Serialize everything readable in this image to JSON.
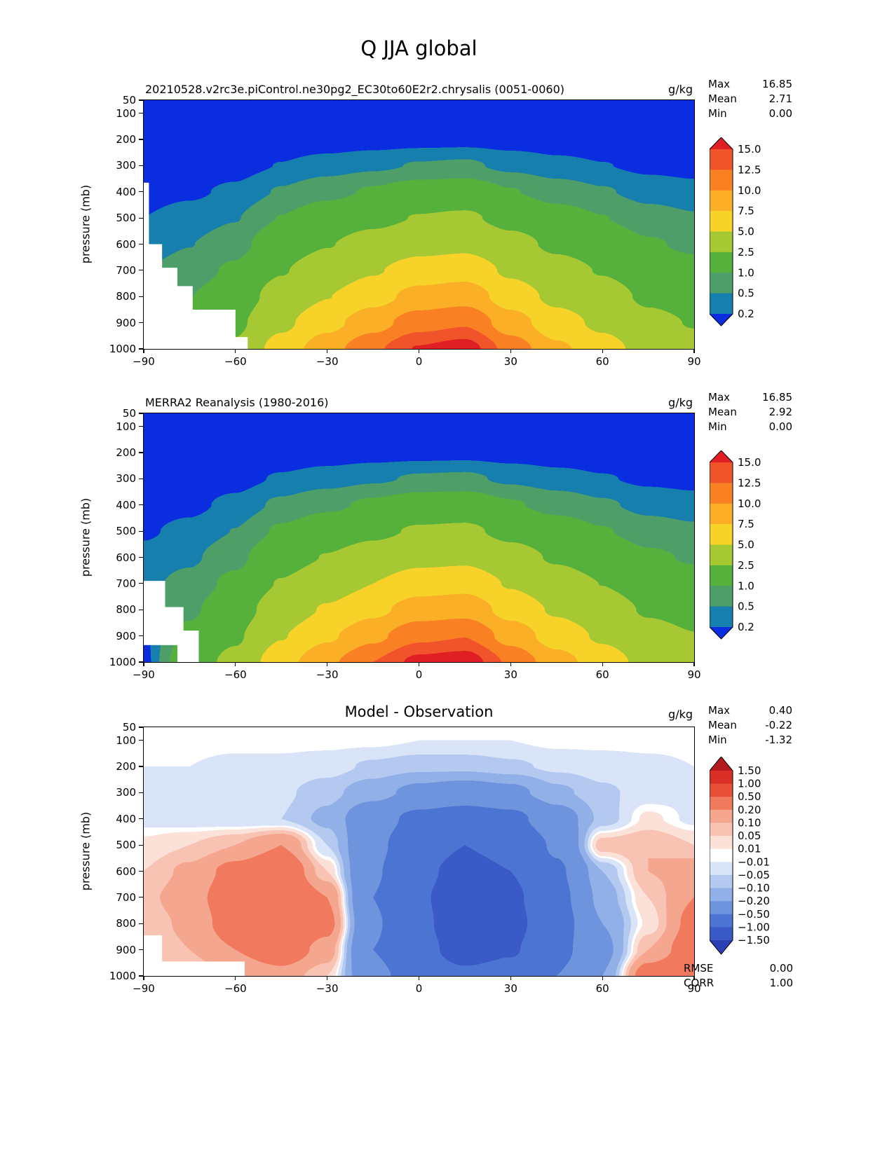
{
  "title": "Q JJA global",
  "labels": {
    "max": "Max",
    "mean": "Mean",
    "min": "Min"
  },
  "chart_data": [
    {
      "type": "heatmap",
      "subtitle": "20210528.v2rc3e.piControl.ne30pg2_EC30to60E2r2.chrysalis (0051-0060)",
      "units": "g/kg",
      "stats": {
        "max": "16.85",
        "mean": "2.71",
        "min": "0.00"
      },
      "ylabel": "pressure (mb)",
      "x_ticks": [
        "−90",
        "−60",
        "−30",
        "0",
        "30",
        "60",
        "90"
      ],
      "y_ticks": [
        "50",
        "100",
        "200",
        "300",
        "400",
        "500",
        "600",
        "700",
        "800",
        "900",
        "1000"
      ],
      "lat": [
        -90,
        -75,
        -60,
        -45,
        -30,
        -15,
        0,
        15,
        30,
        45,
        60,
        75,
        90
      ],
      "pressure": [
        50,
        100,
        200,
        300,
        400,
        500,
        600,
        700,
        800,
        900,
        1000
      ],
      "levels": [
        0.2,
        0.5,
        1.0,
        2.5,
        5.0,
        7.5,
        10.0,
        12.5,
        15.0
      ],
      "level_labels": [
        "15.0",
        "12.5",
        "10.0",
        "7.5",
        "5.0",
        "2.5",
        "1.0",
        "0.5",
        "0.2"
      ],
      "colors": [
        "#0a2de0",
        "#177fad",
        "#4d9e68",
        "#55b13b",
        "#a6c832",
        "#f7d32a",
        "#fbaf27",
        "#f98124",
        "#f1532b",
        "#e01f25"
      ],
      "values": [
        [
          0,
          0,
          0,
          0,
          0,
          0,
          0,
          0,
          0,
          0,
          0,
          0,
          0
        ],
        [
          0,
          0,
          0,
          0,
          0,
          0.01,
          0.01,
          0.01,
          0.01,
          0,
          0,
          0,
          0
        ],
        [
          0.01,
          0.01,
          0.02,
          0.04,
          0.05,
          0.07,
          0.09,
          0.1,
          0.07,
          0.05,
          0.04,
          0.02,
          0.02
        ],
        [
          0.04,
          0.06,
          0.1,
          0.21,
          0.32,
          0.42,
          0.53,
          0.57,
          0.4,
          0.28,
          0.21,
          0.14,
          0.11
        ],
        [
          0.11,
          0.16,
          0.25,
          0.54,
          0.81,
          1.08,
          1.37,
          1.47,
          1.04,
          0.72,
          0.54,
          0.36,
          0.29
        ],
        [
          0.2,
          0.31,
          0.48,
          1.02,
          1.53,
          2.04,
          2.58,
          2.77,
          1.96,
          1.36,
          1.02,
          0.68,
          0.54
        ],
        [
          0.32,
          0.49,
          0.76,
          1.62,
          2.43,
          3.24,
          4.1,
          4.4,
          3.11,
          2.16,
          1.62,
          1.08,
          0.86
        ],
        [
          0.48,
          0.72,
          1.12,
          2.4,
          3.6,
          4.8,
          6.08,
          6.52,
          4.6,
          3.2,
          2.4,
          1.6,
          1.28
        ],
        [
          0.66,
          0.99,
          1.54,
          3.3,
          4.95,
          6.6,
          8.36,
          8.97,
          6.33,
          4.4,
          3.3,
          2.2,
          1.76
        ],
        [
          0.9,
          1.35,
          2.1,
          4.5,
          6.75,
          9.0,
          11.4,
          12.23,
          8.63,
          6.0,
          4.5,
          3.0,
          2.4
        ],
        [
          1.2,
          1.8,
          2.8,
          6.0,
          9.0,
          12.0,
          15.2,
          16.3,
          11.5,
          8.0,
          6.0,
          4.0,
          3.2
        ]
      ],
      "mask": [
        [
          [
            -90,
            365
          ],
          [
            -88.3,
            365
          ],
          [
            -88.3,
            600
          ],
          [
            -90,
            600
          ]
        ],
        [
          [
            -90,
            600
          ],
          [
            -84,
            600
          ],
          [
            -84,
            690
          ],
          [
            -79,
            690
          ],
          [
            -79,
            760
          ],
          [
            -74,
            760
          ],
          [
            -74,
            850
          ],
          [
            -60,
            850
          ],
          [
            -60,
            955
          ],
          [
            -56,
            955
          ],
          [
            -56,
            1000
          ],
          [
            -90,
            1000
          ]
        ]
      ]
    },
    {
      "type": "heatmap",
      "subtitle": "MERRA2 Reanalysis (1980-2016)",
      "units": "g/kg",
      "stats": {
        "max": "16.85",
        "mean": "2.92",
        "min": "0.00"
      },
      "ylabel": "pressure (mb)",
      "x_ticks": [
        "−90",
        "−60",
        "−30",
        "0",
        "30",
        "60",
        "90"
      ],
      "y_ticks": [
        "50",
        "100",
        "200",
        "300",
        "400",
        "500",
        "600",
        "700",
        "800",
        "900",
        "1000"
      ],
      "lat": [
        -90,
        -75,
        -60,
        -45,
        -30,
        -15,
        0,
        15,
        30,
        45,
        60,
        75,
        90
      ],
      "pressure": [
        50,
        100,
        200,
        300,
        400,
        500,
        600,
        700,
        800,
        900,
        1000
      ],
      "levels": [
        0.2,
        0.5,
        1.0,
        2.5,
        5.0,
        7.5,
        10.0,
        12.5,
        15.0
      ],
      "level_labels": [
        "15.0",
        "12.5",
        "10.0",
        "7.5",
        "5.0",
        "2.5",
        "1.0",
        "0.5",
        "0.2"
      ],
      "colors": [
        "#0a2de0",
        "#177fad",
        "#4d9e68",
        "#55b13b",
        "#a6c832",
        "#f7d32a",
        "#fbaf27",
        "#f98124",
        "#f1532b",
        "#e01f25"
      ],
      "values": [
        [
          0,
          0,
          0,
          0,
          0,
          0,
          0,
          0,
          0,
          0,
          0,
          0,
          0
        ],
        [
          0,
          0,
          0,
          0,
          0,
          0.01,
          0.01,
          0.01,
          0.01,
          0,
          0,
          0,
          0
        ],
        [
          0.01,
          0.01,
          0.02,
          0.04,
          0.06,
          0.08,
          0.09,
          0.1,
          0.07,
          0.05,
          0.04,
          0.03,
          0.02
        ],
        [
          0.04,
          0.06,
          0.11,
          0.23,
          0.33,
          0.44,
          0.55,
          0.58,
          0.42,
          0.3,
          0.22,
          0.15,
          0.12
        ],
        [
          0.09,
          0.14,
          0.27,
          0.59,
          0.86,
          1.13,
          1.42,
          1.49,
          1.08,
          0.77,
          0.56,
          0.38,
          0.31
        ],
        [
          0.17,
          0.27,
          0.51,
          1.11,
          1.62,
          2.13,
          2.69,
          2.82,
          2.04,
          1.45,
          1.05,
          0.71,
          0.58
        ],
        [
          0.27,
          0.43,
          0.81,
          1.76,
          2.57,
          3.38,
          4.27,
          4.48,
          3.24,
          2.3,
          1.67,
          1.13,
          0.92
        ],
        [
          0.4,
          0.64,
          1.2,
          2.6,
          3.8,
          5.0,
          6.32,
          6.64,
          4.8,
          3.4,
          2.48,
          1.68,
          1.36
        ],
        [
          0.55,
          0.88,
          1.65,
          3.58,
          5.23,
          6.88,
          8.69,
          9.13,
          6.6,
          4.68,
          3.41,
          2.31,
          1.87
        ],
        [
          0.15,
          1.2,
          2.25,
          4.88,
          7.13,
          9.38,
          11.85,
          12.45,
          9.0,
          6.38,
          4.65,
          3.15,
          2.55
        ],
        [
          0.1,
          1.6,
          3.0,
          6.5,
          9.5,
          12.5,
          15.8,
          16.6,
          12.0,
          8.5,
          6.2,
          4.2,
          3.4
        ]
      ],
      "mask": [
        [
          [
            -90,
            690
          ],
          [
            -83,
            690
          ],
          [
            -83,
            790
          ],
          [
            -77,
            790
          ],
          [
            -77,
            880
          ],
          [
            -72,
            880
          ],
          [
            -72,
            1000
          ],
          [
            -79,
            1000
          ],
          [
            -79,
            935
          ],
          [
            -90,
            935
          ]
        ]
      ]
    },
    {
      "type": "heatmap",
      "subtitle": "Model - Observation",
      "units": "g/kg",
      "stats": {
        "max": "0.40",
        "mean": "-0.22",
        "min": "-1.32"
      },
      "metrics": {
        "rmse_label": "RMSE",
        "rmse": "0.00",
        "corr_label": "CORR",
        "corr": "1.00"
      },
      "ylabel": "pressure (mb)",
      "x_ticks": [
        "−90",
        "−60",
        "−30",
        "0",
        "30",
        "60",
        "90"
      ],
      "y_ticks": [
        "50",
        "100",
        "200",
        "300",
        "400",
        "500",
        "600",
        "700",
        "800",
        "900",
        "1000"
      ],
      "lat": [
        -90,
        -75,
        -60,
        -45,
        -30,
        -15,
        0,
        15,
        30,
        45,
        60,
        75,
        90
      ],
      "pressure": [
        50,
        100,
        200,
        300,
        400,
        500,
        600,
        700,
        800,
        900,
        1000
      ],
      "levels": [
        -1.5,
        -1.0,
        -0.5,
        -0.2,
        -0.1,
        -0.05,
        -0.01,
        0.01,
        0.05,
        0.1,
        0.2,
        0.5,
        1.0,
        1.5
      ],
      "level_labels": [
        "1.50",
        "1.00",
        "0.50",
        "0.20",
        "0.10",
        "0.05",
        "0.01",
        "−0.01",
        "−0.05",
        "−0.10",
        "−0.20",
        "−0.50",
        "−1.00",
        "−1.50"
      ],
      "colors": [
        "#2b3fb4",
        "#3a5ac7",
        "#4c74d3",
        "#6f94de",
        "#92b0e8",
        "#b4c9f0",
        "#d9e4f8",
        "#ffffff",
        "#fbe1d8",
        "#f8c3b3",
        "#f5a68f",
        "#f1795e",
        "#e84f37",
        "#d92f26",
        "#b5191e"
      ],
      "values": [
        [
          0,
          0,
          0,
          0,
          0,
          0,
          0,
          0,
          0,
          0,
          0,
          0,
          0
        ],
        [
          0,
          0,
          0,
          0,
          0,
          0,
          -0.01,
          -0.01,
          -0.01,
          0,
          0,
          0,
          0
        ],
        [
          -0.01,
          -0.01,
          -0.02,
          -0.02,
          -0.03,
          -0.06,
          -0.08,
          -0.08,
          -0.06,
          -0.04,
          -0.03,
          -0.02,
          -0.01
        ],
        [
          -0.02,
          -0.02,
          -0.03,
          -0.04,
          -0.08,
          -0.15,
          -0.25,
          -0.3,
          -0.25,
          -0.12,
          -0.06,
          -0.03,
          -0.02
        ],
        [
          -0.02,
          -0.03,
          -0.04,
          -0.05,
          -0.12,
          -0.35,
          -0.6,
          -0.7,
          -0.6,
          -0.3,
          -0.08,
          0.02,
          -0.02
        ],
        [
          0.02,
          0.05,
          0.1,
          0.2,
          -0.05,
          -0.4,
          -0.8,
          -1.0,
          -0.85,
          -0.45,
          0.08,
          0.1,
          0.05
        ],
        [
          0.05,
          0.12,
          0.25,
          0.35,
          0.05,
          -0.45,
          -0.9,
          -1.15,
          -1.0,
          -0.55,
          -0.1,
          0.1,
          0.15
        ],
        [
          0.08,
          0.15,
          0.3,
          0.4,
          0.2,
          -0.5,
          -0.95,
          -1.25,
          -1.1,
          -0.6,
          -0.15,
          0.05,
          0.2
        ],
        [
          0.06,
          0.12,
          0.28,
          0.38,
          0.25,
          -0.45,
          -0.9,
          -1.3,
          -1.15,
          -0.65,
          -0.2,
          0.02,
          0.25
        ],
        [
          0.04,
          0.1,
          0.2,
          0.3,
          0.15,
          -0.5,
          -0.85,
          -1.2,
          -1.05,
          -0.6,
          -0.25,
          0.1,
          0.3
        ],
        [
          0.02,
          0.05,
          0.1,
          0.15,
          0.05,
          -0.4,
          -0.7,
          -0.9,
          -0.8,
          -0.5,
          -0.2,
          0.3,
          0.4
        ]
      ],
      "mask": [
        [
          [
            -90,
            845
          ],
          [
            -84,
            845
          ],
          [
            -84,
            945
          ],
          [
            -57,
            945
          ],
          [
            -57,
            1000
          ],
          [
            -90,
            1000
          ]
        ]
      ]
    }
  ]
}
